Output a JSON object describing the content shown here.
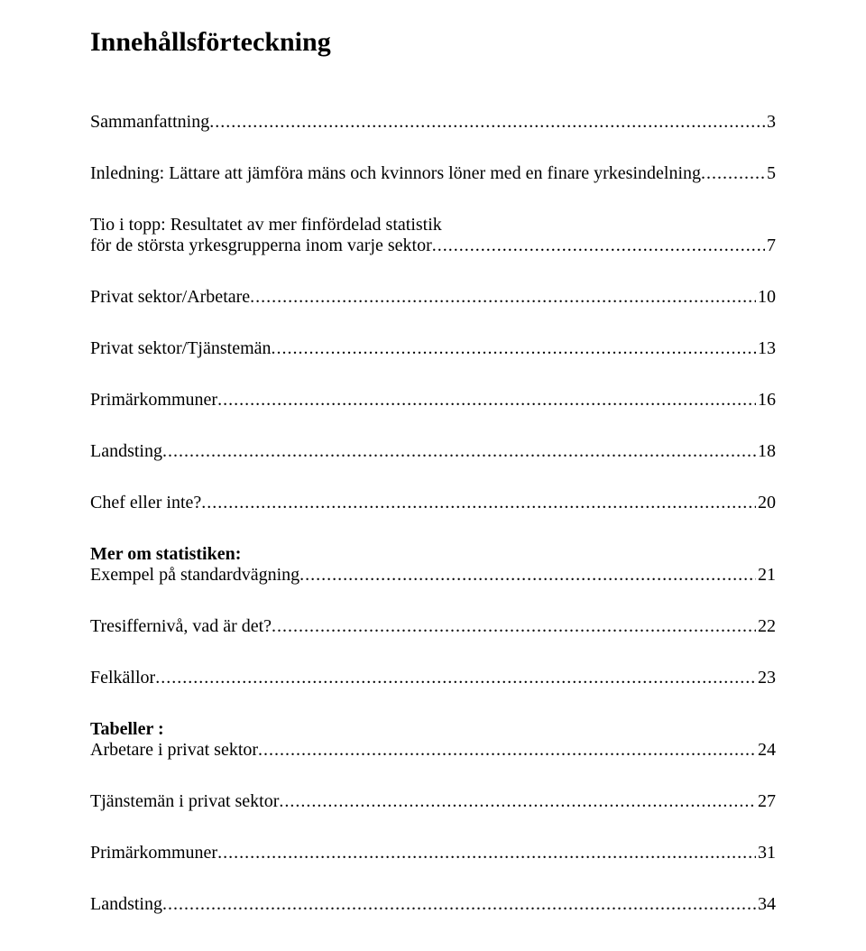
{
  "title": "Innehållsförteckning",
  "entries": [
    {
      "label": "Sammanfattning",
      "page": "3",
      "bold": false
    },
    {
      "label": "Inledning: Lättare att jämföra mäns och kvinnors löner med en finare yrkesindelning",
      "page": "5",
      "bold": false
    },
    {
      "label": "Tio i topp: Resultatet av mer finfördelad statistik",
      "page": "",
      "bold": false,
      "noLeader": true
    },
    {
      "label": "för de största yrkesgrupperna inom varje sektor",
      "page": "7",
      "bold": false
    },
    {
      "label": "Privat sektor/Arbetare",
      "page": "10",
      "bold": false
    },
    {
      "label": "Privat sektor/Tjänstemän",
      "page": "13",
      "bold": false
    },
    {
      "label": "Primärkommuner",
      "page": "16",
      "bold": false
    },
    {
      "label": "Landsting",
      "page": "18",
      "bold": false
    },
    {
      "label": "Chef eller inte?",
      "page": "20",
      "bold": false
    },
    {
      "label": "Mer om statistiken:",
      "page": "",
      "bold": true,
      "noLeader": true
    },
    {
      "label": "Exempel på standardvägning",
      "page": "21",
      "bold": false
    },
    {
      "label": "Tresiffernivå, vad är det?",
      "page": "22",
      "bold": false
    },
    {
      "label": "Felkällor",
      "page": "23",
      "bold": false
    },
    {
      "label": "Tabeller :",
      "page": "",
      "bold": true,
      "noLeader": true
    },
    {
      "label": "Arbetare i privat sektor",
      "page": "24",
      "bold": false
    },
    {
      "label": "Tjänstemän i privat sektor",
      "page": "27",
      "bold": false
    },
    {
      "label": "Primärkommuner",
      "page": "31",
      "bold": false
    },
    {
      "label": "Landsting",
      "page": "34",
      "bold": false
    }
  ]
}
